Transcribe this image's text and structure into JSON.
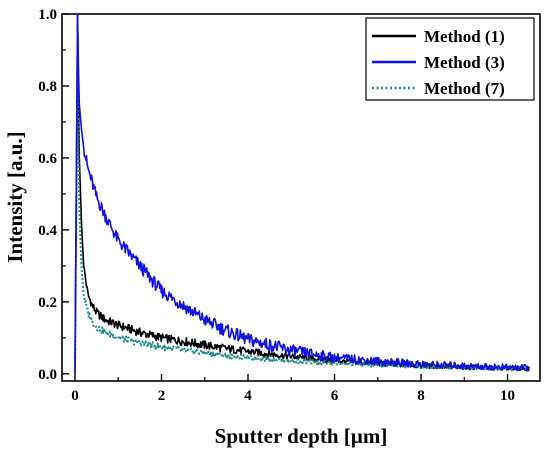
{
  "chart_data": {
    "type": "line",
    "title": "",
    "xlabel": "Sputter depth [µm]",
    "ylabel": "Intensity [a.u.]",
    "xlim": [
      -0.3,
      10.75
    ],
    "ylim": [
      -0.02,
      1.0
    ],
    "xticks": [
      0,
      2,
      4,
      6,
      8,
      10
    ],
    "yticks": [
      0.0,
      0.2,
      0.4,
      0.6,
      0.8,
      1.0
    ],
    "xtick_labels": [
      "0",
      "2",
      "4",
      "6",
      "8",
      "10"
    ],
    "ytick_labels": [
      "0.0",
      "0.2",
      "0.4",
      "0.6",
      "0.8",
      "1.0"
    ],
    "grid": false,
    "legend_position": "top-right",
    "series": [
      {
        "name": "Method (1)",
        "color": "#000000",
        "style": "solid",
        "x": [
          0,
          0.03,
          0.06,
          0.08,
          0.1,
          0.15,
          0.2,
          0.3,
          0.4,
          0.5,
          0.7,
          1,
          1.5,
          2,
          2.5,
          3,
          3.5,
          4,
          5,
          6,
          7,
          8,
          9,
          10,
          10.5
        ],
        "y": [
          0.0,
          0.5,
          1.0,
          0.78,
          0.6,
          0.42,
          0.3,
          0.22,
          0.19,
          0.17,
          0.15,
          0.135,
          0.115,
          0.1,
          0.09,
          0.08,
          0.07,
          0.062,
          0.048,
          0.036,
          0.028,
          0.022,
          0.018,
          0.015,
          0.014
        ]
      },
      {
        "name": "Method (3)",
        "color": "#1010e0",
        "style": "solid",
        "x": [
          0,
          0.03,
          0.06,
          0.08,
          0.1,
          0.15,
          0.2,
          0.3,
          0.5,
          0.7,
          1,
          1.5,
          2,
          2.5,
          3,
          3.5,
          4,
          5,
          6,
          7,
          8,
          9,
          10,
          10.5
        ],
        "y": [
          0.0,
          0.5,
          1.0,
          0.85,
          0.75,
          0.68,
          0.63,
          0.57,
          0.49,
          0.44,
          0.37,
          0.3,
          0.23,
          0.19,
          0.15,
          0.12,
          0.095,
          0.065,
          0.045,
          0.035,
          0.027,
          0.022,
          0.018,
          0.016
        ]
      },
      {
        "name": "Method (7)",
        "color": "#1e8c8c",
        "style": "dotted",
        "x": [
          0,
          0.03,
          0.06,
          0.08,
          0.1,
          0.15,
          0.2,
          0.3,
          0.4,
          0.5,
          0.7,
          1,
          1.5,
          2,
          2.5,
          3,
          3.5,
          4,
          5,
          6,
          7,
          8,
          9,
          10,
          10.5
        ],
        "y": [
          0.0,
          0.45,
          0.95,
          0.62,
          0.45,
          0.3,
          0.22,
          0.17,
          0.145,
          0.13,
          0.115,
          0.1,
          0.085,
          0.075,
          0.066,
          0.058,
          0.05,
          0.045,
          0.036,
          0.029,
          0.024,
          0.02,
          0.017,
          0.014,
          0.013
        ]
      }
    ]
  }
}
